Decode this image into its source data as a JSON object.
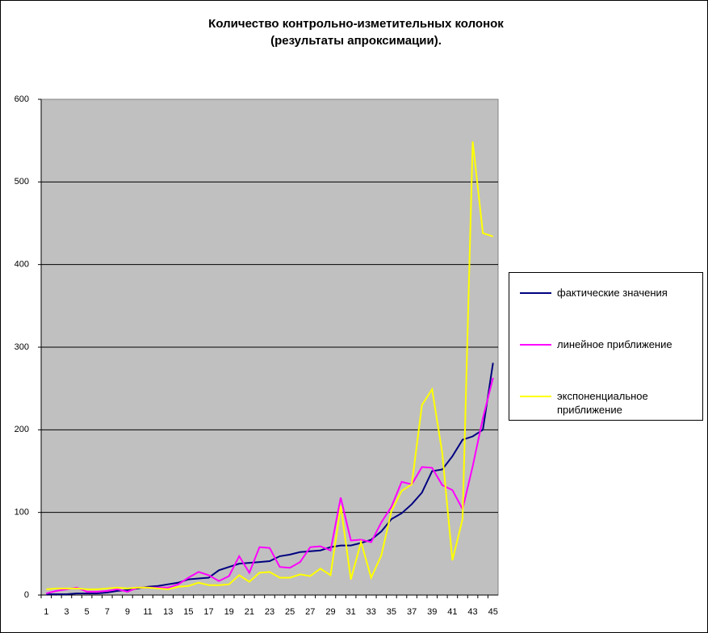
{
  "chart_data": {
    "type": "line",
    "title": [
      "Количество контрольно-изметительных колонок",
      "(результаты апроксимации)."
    ],
    "categories": [
      "1",
      null,
      "3",
      null,
      "5",
      null,
      "7",
      null,
      "9",
      null,
      "11",
      null,
      "13",
      null,
      "15",
      null,
      "17",
      null,
      "19",
      null,
      "21",
      null,
      "23",
      null,
      "25",
      null,
      "27",
      null,
      "29",
      null,
      "31",
      null,
      "33",
      null,
      "35",
      null,
      "37",
      null,
      "39",
      null,
      "41",
      null,
      "43",
      null,
      "45"
    ],
    "series": [
      {
        "name": "фактические значения",
        "color": "#000080",
        "values": [
          1,
          1,
          1,
          2,
          2,
          2,
          3,
          5,
          6,
          8,
          10,
          11,
          13,
          15,
          19,
          20,
          21,
          30,
          34,
          38,
          39,
          40,
          41,
          47,
          49,
          52,
          53,
          54,
          58,
          60,
          60,
          63,
          67,
          77,
          92,
          99,
          110,
          124,
          150,
          152,
          168,
          188,
          192,
          200,
          281
        ]
      },
      {
        "name": "линейное приближение",
        "color": "#ff00ff",
        "values": [
          2,
          5,
          7,
          9,
          4,
          4,
          5,
          7,
          4,
          9,
          9,
          9,
          9,
          13,
          21,
          28,
          24,
          17,
          23,
          47,
          27,
          58,
          57,
          34,
          33,
          40,
          58,
          59,
          54,
          118,
          66,
          67,
          64,
          88,
          107,
          137,
          134,
          155,
          154,
          133,
          127,
          104,
          156,
          214,
          263
        ]
      },
      {
        "name": "экспоненциальное приближение",
        "color": "#ffff00",
        "values": [
          7,
          8,
          8,
          8,
          7,
          7,
          8,
          9,
          8,
          9,
          9,
          8,
          7,
          10,
          11,
          15,
          12,
          12,
          13,
          24,
          16,
          27,
          28,
          21,
          21,
          25,
          23,
          32,
          24,
          108,
          19,
          64,
          21,
          48,
          102,
          126,
          134,
          230,
          249,
          172,
          42,
          92,
          549,
          438,
          434
        ]
      }
    ],
    "ylim": [
      0,
      600
    ],
    "yticks": [
      0,
      100,
      200,
      300,
      400,
      500,
      600
    ],
    "grid": true,
    "legend": "right"
  }
}
